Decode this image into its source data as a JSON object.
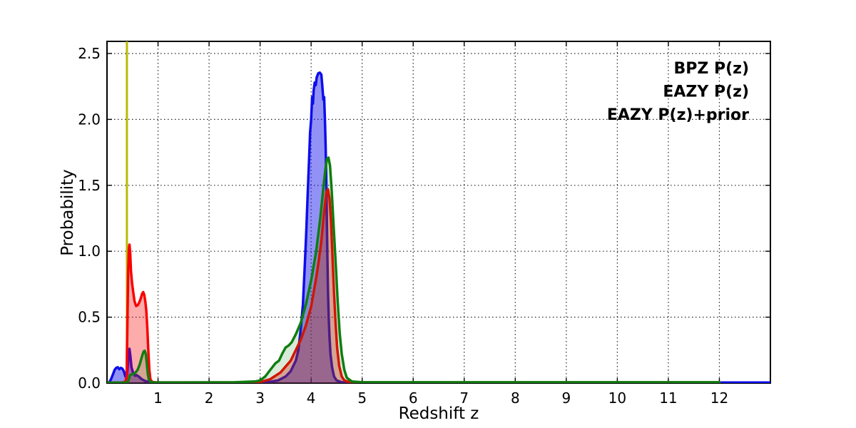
{
  "figure": {
    "background": "#ffffff",
    "grid_color": "#000000",
    "spine_color": "#000000"
  },
  "chart_data": {
    "type": "area",
    "title": "",
    "xlabel": "Redshift z",
    "ylabel": "Probability",
    "xlim": [
      0,
      13
    ],
    "ylim": [
      0,
      2.592
    ],
    "grid": true,
    "legend_position": "upper right",
    "x_tick_values": [
      1,
      2,
      3,
      4,
      5,
      6,
      7,
      8,
      9,
      10,
      11,
      12
    ],
    "x_tick_labels": [
      "1",
      "2",
      "3",
      "4",
      "5",
      "6",
      "7",
      "8",
      "9",
      "10",
      "11",
      "12"
    ],
    "y_tick_values": [
      0,
      0.5,
      1,
      1.5,
      2,
      2.5
    ],
    "y_tick_labels": [
      "0.0",
      "0.5",
      "1.0",
      "1.5",
      "2.0",
      "2.5"
    ],
    "markers": [
      {
        "type": "vline",
        "x": 0.39,
        "color": "#b9ba00",
        "width": 3
      }
    ],
    "series": [
      {
        "name": "BPZ P(z)",
        "color": "#0d0deb",
        "fill_opacity": 0.45,
        "points": [
          [
            0,
            0
          ],
          [
            0.05,
            0.01
          ],
          [
            0.08,
            0.03
          ],
          [
            0.12,
            0.07
          ],
          [
            0.15,
            0.1
          ],
          [
            0.18,
            0.115
          ],
          [
            0.21,
            0.12
          ],
          [
            0.24,
            0.105
          ],
          [
            0.27,
            0.115
          ],
          [
            0.3,
            0.11
          ],
          [
            0.33,
            0.09
          ],
          [
            0.36,
            0.05
          ],
          [
            0.39,
            0.06
          ],
          [
            0.41,
            0.14
          ],
          [
            0.43,
            0.24
          ],
          [
            0.44,
            0.26
          ],
          [
            0.46,
            0.2
          ],
          [
            0.48,
            0.12
          ],
          [
            0.51,
            0.08
          ],
          [
            0.55,
            0.055
          ],
          [
            0.58,
            0.06
          ],
          [
            0.62,
            0.05
          ],
          [
            0.68,
            0.03
          ],
          [
            0.75,
            0.015
          ],
          [
            0.85,
            0.006
          ],
          [
            1,
            0.004
          ],
          [
            2,
            0.004
          ],
          [
            3,
            0.004
          ],
          [
            3.2,
            0.01
          ],
          [
            3.35,
            0.02
          ],
          [
            3.5,
            0.05
          ],
          [
            3.6,
            0.09
          ],
          [
            3.7,
            0.17
          ],
          [
            3.75,
            0.25
          ],
          [
            3.8,
            0.42
          ],
          [
            3.84,
            0.6
          ],
          [
            3.87,
            0.85
          ],
          [
            3.9,
            1.1
          ],
          [
            3.93,
            1.4
          ],
          [
            3.96,
            1.7
          ],
          [
            3.98,
            1.9
          ],
          [
            4,
            2
          ],
          [
            4.02,
            2.17
          ],
          [
            4.035,
            2.12
          ],
          [
            4.05,
            2.22
          ],
          [
            4.07,
            2.28
          ],
          [
            4.09,
            2.26
          ],
          [
            4.11,
            2.32
          ],
          [
            4.14,
            2.35
          ],
          [
            4.17,
            2.355
          ],
          [
            4.2,
            2.34
          ],
          [
            4.22,
            2.25
          ],
          [
            4.24,
            2.15
          ],
          [
            4.255,
            2.17
          ],
          [
            4.27,
            2
          ],
          [
            4.285,
            1.8
          ],
          [
            4.3,
            1.5
          ],
          [
            4.31,
            1.2
          ],
          [
            4.32,
            0.95
          ],
          [
            4.33,
            0.7
          ],
          [
            4.345,
            0.5
          ],
          [
            4.36,
            0.35
          ],
          [
            4.38,
            0.22
          ],
          [
            4.41,
            0.12
          ],
          [
            4.45,
            0.05
          ],
          [
            4.5,
            0.02
          ],
          [
            4.6,
            0.006
          ],
          [
            4.8,
            0.004
          ],
          [
            5.5,
            0.004
          ],
          [
            7,
            0.004
          ],
          [
            9,
            0.004
          ],
          [
            11,
            0.004
          ],
          [
            13,
            0.004
          ]
        ]
      },
      {
        "name": "EAZY P(z)",
        "color": "#f80202",
        "fill_opacity": 0.33,
        "points": [
          [
            0,
            0.004
          ],
          [
            0.2,
            0.004
          ],
          [
            0.3,
            0.005
          ],
          [
            0.36,
            0.01
          ],
          [
            0.385,
            0.05
          ],
          [
            0.4,
            0.45
          ],
          [
            0.415,
            0.85
          ],
          [
            0.43,
            1.02
          ],
          [
            0.44,
            1.05
          ],
          [
            0.455,
            0.98
          ],
          [
            0.47,
            0.85
          ],
          [
            0.49,
            0.76
          ],
          [
            0.51,
            0.7
          ],
          [
            0.54,
            0.62
          ],
          [
            0.57,
            0.585
          ],
          [
            0.6,
            0.59
          ],
          [
            0.63,
            0.61
          ],
          [
            0.66,
            0.64
          ],
          [
            0.69,
            0.68
          ],
          [
            0.71,
            0.69
          ],
          [
            0.73,
            0.67
          ],
          [
            0.75,
            0.62
          ],
          [
            0.77,
            0.55
          ],
          [
            0.79,
            0.42
          ],
          [
            0.81,
            0.25
          ],
          [
            0.83,
            0.1
          ],
          [
            0.85,
            0.03
          ],
          [
            0.88,
            0.01
          ],
          [
            0.95,
            0.005
          ],
          [
            1.5,
            0.005
          ],
          [
            2.5,
            0.005
          ],
          [
            3,
            0.007
          ],
          [
            3.2,
            0.03
          ],
          [
            3.4,
            0.08
          ],
          [
            3.6,
            0.17
          ],
          [
            3.8,
            0.33
          ],
          [
            3.9,
            0.44
          ],
          [
            4,
            0.58
          ],
          [
            4.1,
            0.8
          ],
          [
            4.15,
            0.93
          ],
          [
            4.2,
            1.08
          ],
          [
            4.25,
            1.28
          ],
          [
            4.3,
            1.45
          ],
          [
            4.33,
            1.47
          ],
          [
            4.36,
            1.4
          ],
          [
            4.39,
            1.22
          ],
          [
            4.42,
            0.95
          ],
          [
            4.45,
            0.68
          ],
          [
            4.48,
            0.45
          ],
          [
            4.51,
            0.27
          ],
          [
            4.55,
            0.13
          ],
          [
            4.6,
            0.05
          ],
          [
            4.65,
            0.02
          ],
          [
            4.75,
            0.007
          ],
          [
            5,
            0.005
          ],
          [
            6,
            0.005
          ],
          [
            8,
            0.005
          ],
          [
            10,
            0.005
          ],
          [
            12,
            0.005
          ]
        ]
      },
      {
        "name": "EAZY P(z)+prior",
        "color": "#0f7d0f",
        "fill_opacity": 0.16,
        "points": [
          [
            0,
            0.003
          ],
          [
            0.3,
            0.003
          ],
          [
            0.4,
            0.005
          ],
          [
            0.43,
            0.03
          ],
          [
            0.45,
            0.06
          ],
          [
            0.48,
            0.065
          ],
          [
            0.52,
            0.07
          ],
          [
            0.56,
            0.08
          ],
          [
            0.6,
            0.1
          ],
          [
            0.64,
            0.14
          ],
          [
            0.67,
            0.18
          ],
          [
            0.7,
            0.22
          ],
          [
            0.72,
            0.24
          ],
          [
            0.74,
            0.245
          ],
          [
            0.76,
            0.22
          ],
          [
            0.78,
            0.15
          ],
          [
            0.8,
            0.07
          ],
          [
            0.82,
            0.025
          ],
          [
            0.85,
            0.01
          ],
          [
            0.9,
            0.005
          ],
          [
            1.5,
            0.005
          ],
          [
            2.5,
            0.006
          ],
          [
            2.9,
            0.012
          ],
          [
            3,
            0.02
          ],
          [
            3.1,
            0.05
          ],
          [
            3.2,
            0.1
          ],
          [
            3.3,
            0.15
          ],
          [
            3.37,
            0.17
          ],
          [
            3.43,
            0.22
          ],
          [
            3.5,
            0.27
          ],
          [
            3.56,
            0.285
          ],
          [
            3.62,
            0.31
          ],
          [
            3.7,
            0.37
          ],
          [
            3.8,
            0.46
          ],
          [
            3.9,
            0.6
          ],
          [
            4,
            0.78
          ],
          [
            4.1,
            1
          ],
          [
            4.18,
            1.25
          ],
          [
            4.24,
            1.48
          ],
          [
            4.28,
            1.62
          ],
          [
            4.31,
            1.7
          ],
          [
            4.34,
            1.71
          ],
          [
            4.37,
            1.65
          ],
          [
            4.4,
            1.48
          ],
          [
            4.44,
            1.2
          ],
          [
            4.48,
            0.92
          ],
          [
            4.52,
            0.62
          ],
          [
            4.56,
            0.38
          ],
          [
            4.6,
            0.22
          ],
          [
            4.65,
            0.1
          ],
          [
            4.7,
            0.04
          ],
          [
            4.8,
            0.012
          ],
          [
            5,
            0.006
          ],
          [
            6,
            0.006
          ],
          [
            8,
            0.006
          ],
          [
            10,
            0.006
          ],
          [
            12,
            0.006
          ]
        ]
      }
    ]
  },
  "legend": {
    "entries": [
      {
        "label": "BPZ P(z)",
        "color": "#1d1de0"
      },
      {
        "label": "EAZY P(z)",
        "color": "#f80202"
      },
      {
        "label": "EAZY P(z)+prior",
        "color": "#148014"
      }
    ]
  }
}
